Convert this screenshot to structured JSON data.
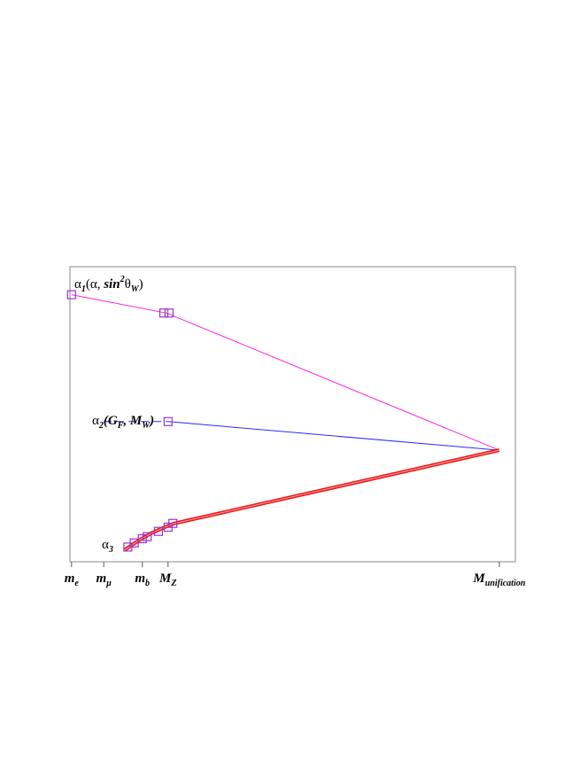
{
  "chart_data": {
    "type": "line",
    "title": "",
    "xlabel": "",
    "ylabel": "",
    "grid": false,
    "legend": "none",
    "x_ticks": [
      {
        "main": "m",
        "sub": "e",
        "x": 0
      },
      {
        "main": "m",
        "sub": "μ",
        "x": 1
      },
      {
        "main": "m",
        "sub": "b",
        "x": 2.2
      },
      {
        "main": "M",
        "sub": "Z",
        "x": 3
      },
      {
        "main": "M",
        "sub": "unification",
        "x": 13.3
      }
    ],
    "xlim": [
      -0.05,
      13.8
    ],
    "ylim": [
      0,
      1
    ],
    "series": [
      {
        "key": "alpha1",
        "color": "#ff22dd",
        "dash": false,
        "width": 1,
        "points": [
          [
            0,
            0.905
          ],
          [
            2.95,
            0.843
          ],
          [
            13.3,
            0.378
          ]
        ],
        "markers": [
          [
            0,
            0.905
          ],
          [
            2.87,
            0.843
          ],
          [
            3.03,
            0.843
          ]
        ]
      },
      {
        "key": "alpha2_dashed",
        "color": "#2a2aff",
        "dash": true,
        "width": 1,
        "points": [
          [
            1,
            0.475
          ],
          [
            3,
            0.475
          ]
        ],
        "markers": []
      },
      {
        "key": "alpha2",
        "color": "#2a2aff",
        "dash": false,
        "width": 1,
        "points": [
          [
            3,
            0.475
          ],
          [
            13.3,
            0.378
          ]
        ],
        "markers": [
          [
            3,
            0.475
          ]
        ]
      },
      {
        "key": "alpha3",
        "color": "#ee1111",
        "dash": false,
        "width": 4,
        "points": [
          [
            1.65,
            0.04
          ],
          [
            2.1,
            0.073
          ],
          [
            2.5,
            0.098
          ],
          [
            2.9,
            0.117
          ],
          [
            3.2,
            0.13
          ],
          [
            13.3,
            0.378
          ]
        ],
        "markers": [
          [
            1.75,
            0.05
          ],
          [
            1.95,
            0.064
          ],
          [
            2.2,
            0.078
          ],
          [
            2.35,
            0.085
          ],
          [
            2.7,
            0.103
          ],
          [
            3.0,
            0.117
          ],
          [
            3.15,
            0.13
          ]
        ]
      }
    ],
    "marker_color": "#9933cc",
    "annotations": {
      "alpha1": {
        "greek": "α",
        "sub": "1",
        "rest_a": "(α, ",
        "rest_b": "sin",
        "sup": "2",
        "theta": "θ",
        "theta_sub": "W",
        "close": ")"
      },
      "alpha2": {
        "greek": "α",
        "sub": "2",
        "open": "(",
        "g": "G",
        "g_sub": "F",
        "sep": ", ",
        "m": "M",
        "m_sub": "W",
        "close": ")"
      },
      "alpha3": {
        "greek": "α",
        "sub": "3"
      }
    }
  }
}
